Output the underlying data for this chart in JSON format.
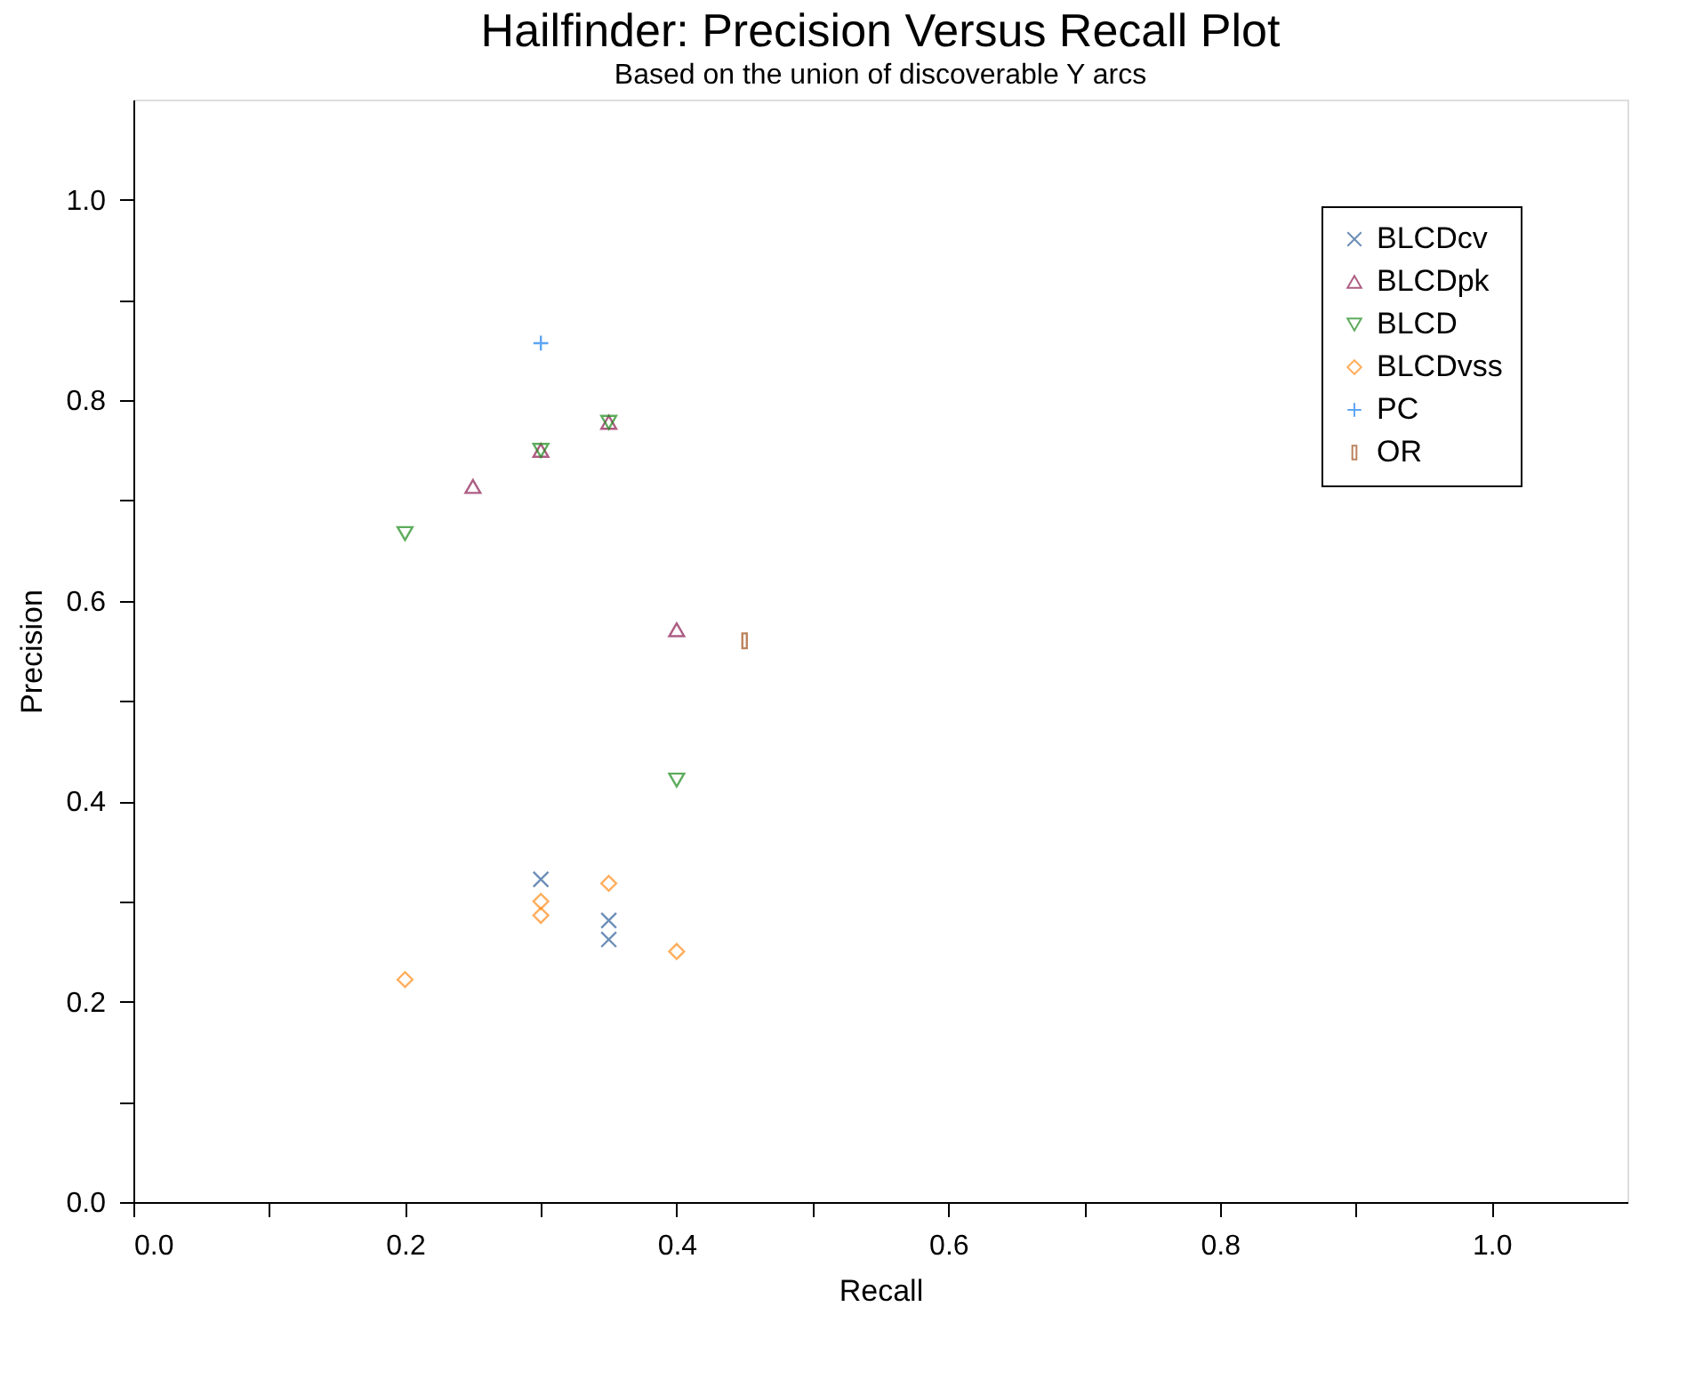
{
  "chart_data": {
    "type": "scatter",
    "title": "Hailfinder:  Precision Versus Recall Plot",
    "subtitle": "Based on the union of discoverable Y arcs",
    "xlabel": "Recall",
    "ylabel": "Precision",
    "series": [
      {
        "name": "BLCDcv",
        "color": "#2f5f9a",
        "marker": "x",
        "x": [
          0.3,
          0.35,
          0.35
        ],
        "values": [
          0.322,
          0.281,
          0.262
        ]
      },
      {
        "name": "BLCDpk",
        "color": "#8b1a50",
        "marker": "triangle-up",
        "x": [
          0.25,
          0.3,
          0.35,
          0.4
        ],
        "values": [
          0.714,
          0.75,
          0.778,
          0.571
        ]
      },
      {
        "name": "BLCD",
        "color": "#1a8a1a",
        "marker": "triangle-down",
        "x": [
          0.2,
          0.3,
          0.35,
          0.4
        ],
        "values": [
          0.667,
          0.75,
          0.778,
          0.421
        ]
      },
      {
        "name": "BLCDvss",
        "color": "#ff8c1a",
        "marker": "diamond",
        "x": [
          0.2,
          0.3,
          0.3,
          0.35,
          0.4
        ],
        "values": [
          0.222,
          0.3,
          0.286,
          0.318,
          0.25
        ]
      },
      {
        "name": "PC",
        "color": "#1a80f0",
        "marker": "plus",
        "x": [
          0.3
        ],
        "values": [
          0.857
        ]
      },
      {
        "name": "OR",
        "color": "#a0501a",
        "marker": "square",
        "x": [
          0.45
        ],
        "values": [
          0.56
        ]
      }
    ],
    "xlim": [
      0,
      1.1
    ],
    "ylim": [
      0,
      1.1
    ],
    "xticks": [
      {
        "value": 0,
        "label": "0.0"
      },
      {
        "value": 0.1,
        "label": null
      },
      {
        "value": 0.2,
        "label": "0.2"
      },
      {
        "value": 0.3,
        "label": null
      },
      {
        "value": 0.4,
        "label": "0.4"
      },
      {
        "value": 0.5,
        "label": null
      },
      {
        "value": 0.6,
        "label": "0.6"
      },
      {
        "value": 0.7,
        "label": null
      },
      {
        "value": 0.8,
        "label": "0.8"
      },
      {
        "value": 0.9,
        "label": null
      },
      {
        "value": 1.0,
        "label": "1.0"
      }
    ],
    "yticks": [
      {
        "value": 0,
        "label": "0.0"
      },
      {
        "value": 0.1,
        "label": null
      },
      {
        "value": 0.2,
        "label": "0.2"
      },
      {
        "value": 0.3,
        "label": null
      },
      {
        "value": 0.4,
        "label": "0.4"
      },
      {
        "value": 0.5,
        "label": null
      },
      {
        "value": 0.6,
        "label": "0.6"
      },
      {
        "value": 0.7,
        "label": null
      },
      {
        "value": 0.8,
        "label": "0.8"
      },
      {
        "value": 0.9,
        "label": null
      },
      {
        "value": 1.0,
        "label": "1.0"
      }
    ],
    "grid": false,
    "legend": "top right"
  }
}
